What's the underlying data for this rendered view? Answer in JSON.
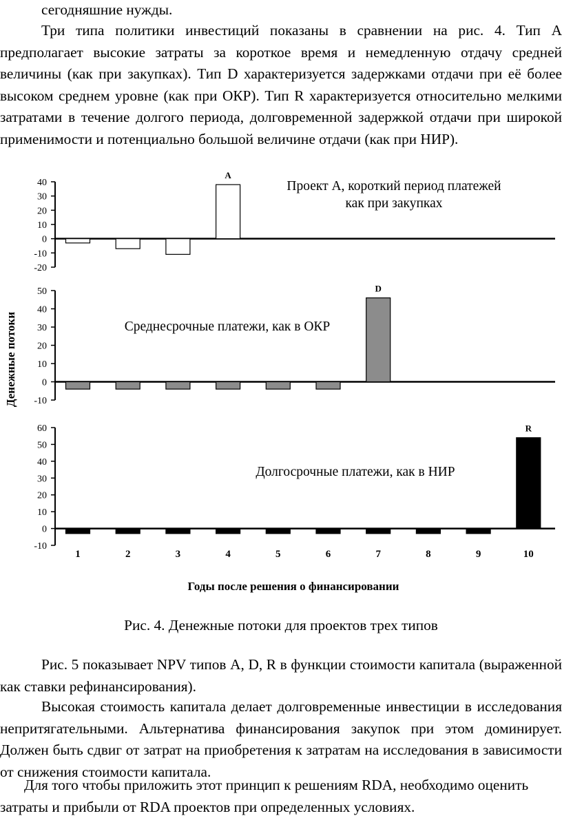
{
  "text": {
    "p0": "сегодняшние нужды.",
    "p1": "Три типа политики инвестиций показаны в сравнении на рис. 4. Тип А предполагает высокие затраты за короткое время и немедленную отдачу средней величины (как при закупках). Тип D характеризуется задержками отдачи при её более высоком среднем уровне (как при ОКР). Тип R характеризуется относительно мелкими затратами в течение долгого периода, долговременной задержкой отдачи при широкой применимости и потенциально большой величине отдачи (как при НИР).",
    "caption": "Рис. 4. Денежные потоки для проектов трех типов",
    "p2": "Рис. 5 показывает NPV типов A, D, R в функции стоимости капитала (выраженной как ставки рефинансирования).",
    "p3": "Высокая стоимость капитала делает долговременные инвестиции в исследования непритягательными. Альтернатива финансирования закупок при этом доминирует. Должен быть сдвиг от затрат на приобретения к затратам на исследования в зависимости от снижения стоимости капитала.",
    "p4": "Для того чтобы приложить этот принцип к решениям RDA, необходимо оценить затраты и прибыли от RDA проектов при определенных условиях."
  },
  "chart_data": {
    "type": "bar",
    "ylabel": "Денежные потоки",
    "xlabel": "Годы после решения о финансировании",
    "categories": [
      "1",
      "2",
      "3",
      "4",
      "5",
      "6",
      "7",
      "8",
      "9",
      "10"
    ],
    "panels": [
      {
        "name": "A",
        "annotation": "Проект А, короткий период платежей как при закупках",
        "color": "#ffffff",
        "ylim": [
          -20,
          40
        ],
        "yticks": [
          40,
          30,
          20,
          10,
          0,
          -10,
          -20
        ],
        "values": [
          -3,
          -7,
          -11,
          38,
          0,
          0,
          0,
          0,
          0,
          0
        ]
      },
      {
        "name": "D",
        "annotation": "Среднесрочные платежи, как в ОКР",
        "color": "#8c8c8c",
        "ylim": [
          -10,
          50
        ],
        "yticks": [
          50,
          40,
          30,
          20,
          10,
          0,
          -10
        ],
        "values": [
          -4,
          -4,
          -4,
          -4,
          -4,
          -4,
          46,
          0,
          0,
          0
        ]
      },
      {
        "name": "R",
        "annotation": "Долгосрочные платежи, как в НИР",
        "color": "#000000",
        "ylim": [
          -10,
          60
        ],
        "yticks": [
          60,
          50,
          40,
          30,
          20,
          10,
          0,
          -10
        ],
        "values": [
          -3,
          -3,
          -3,
          -3,
          -3,
          -3,
          -3,
          -3,
          -3,
          54
        ]
      }
    ]
  }
}
